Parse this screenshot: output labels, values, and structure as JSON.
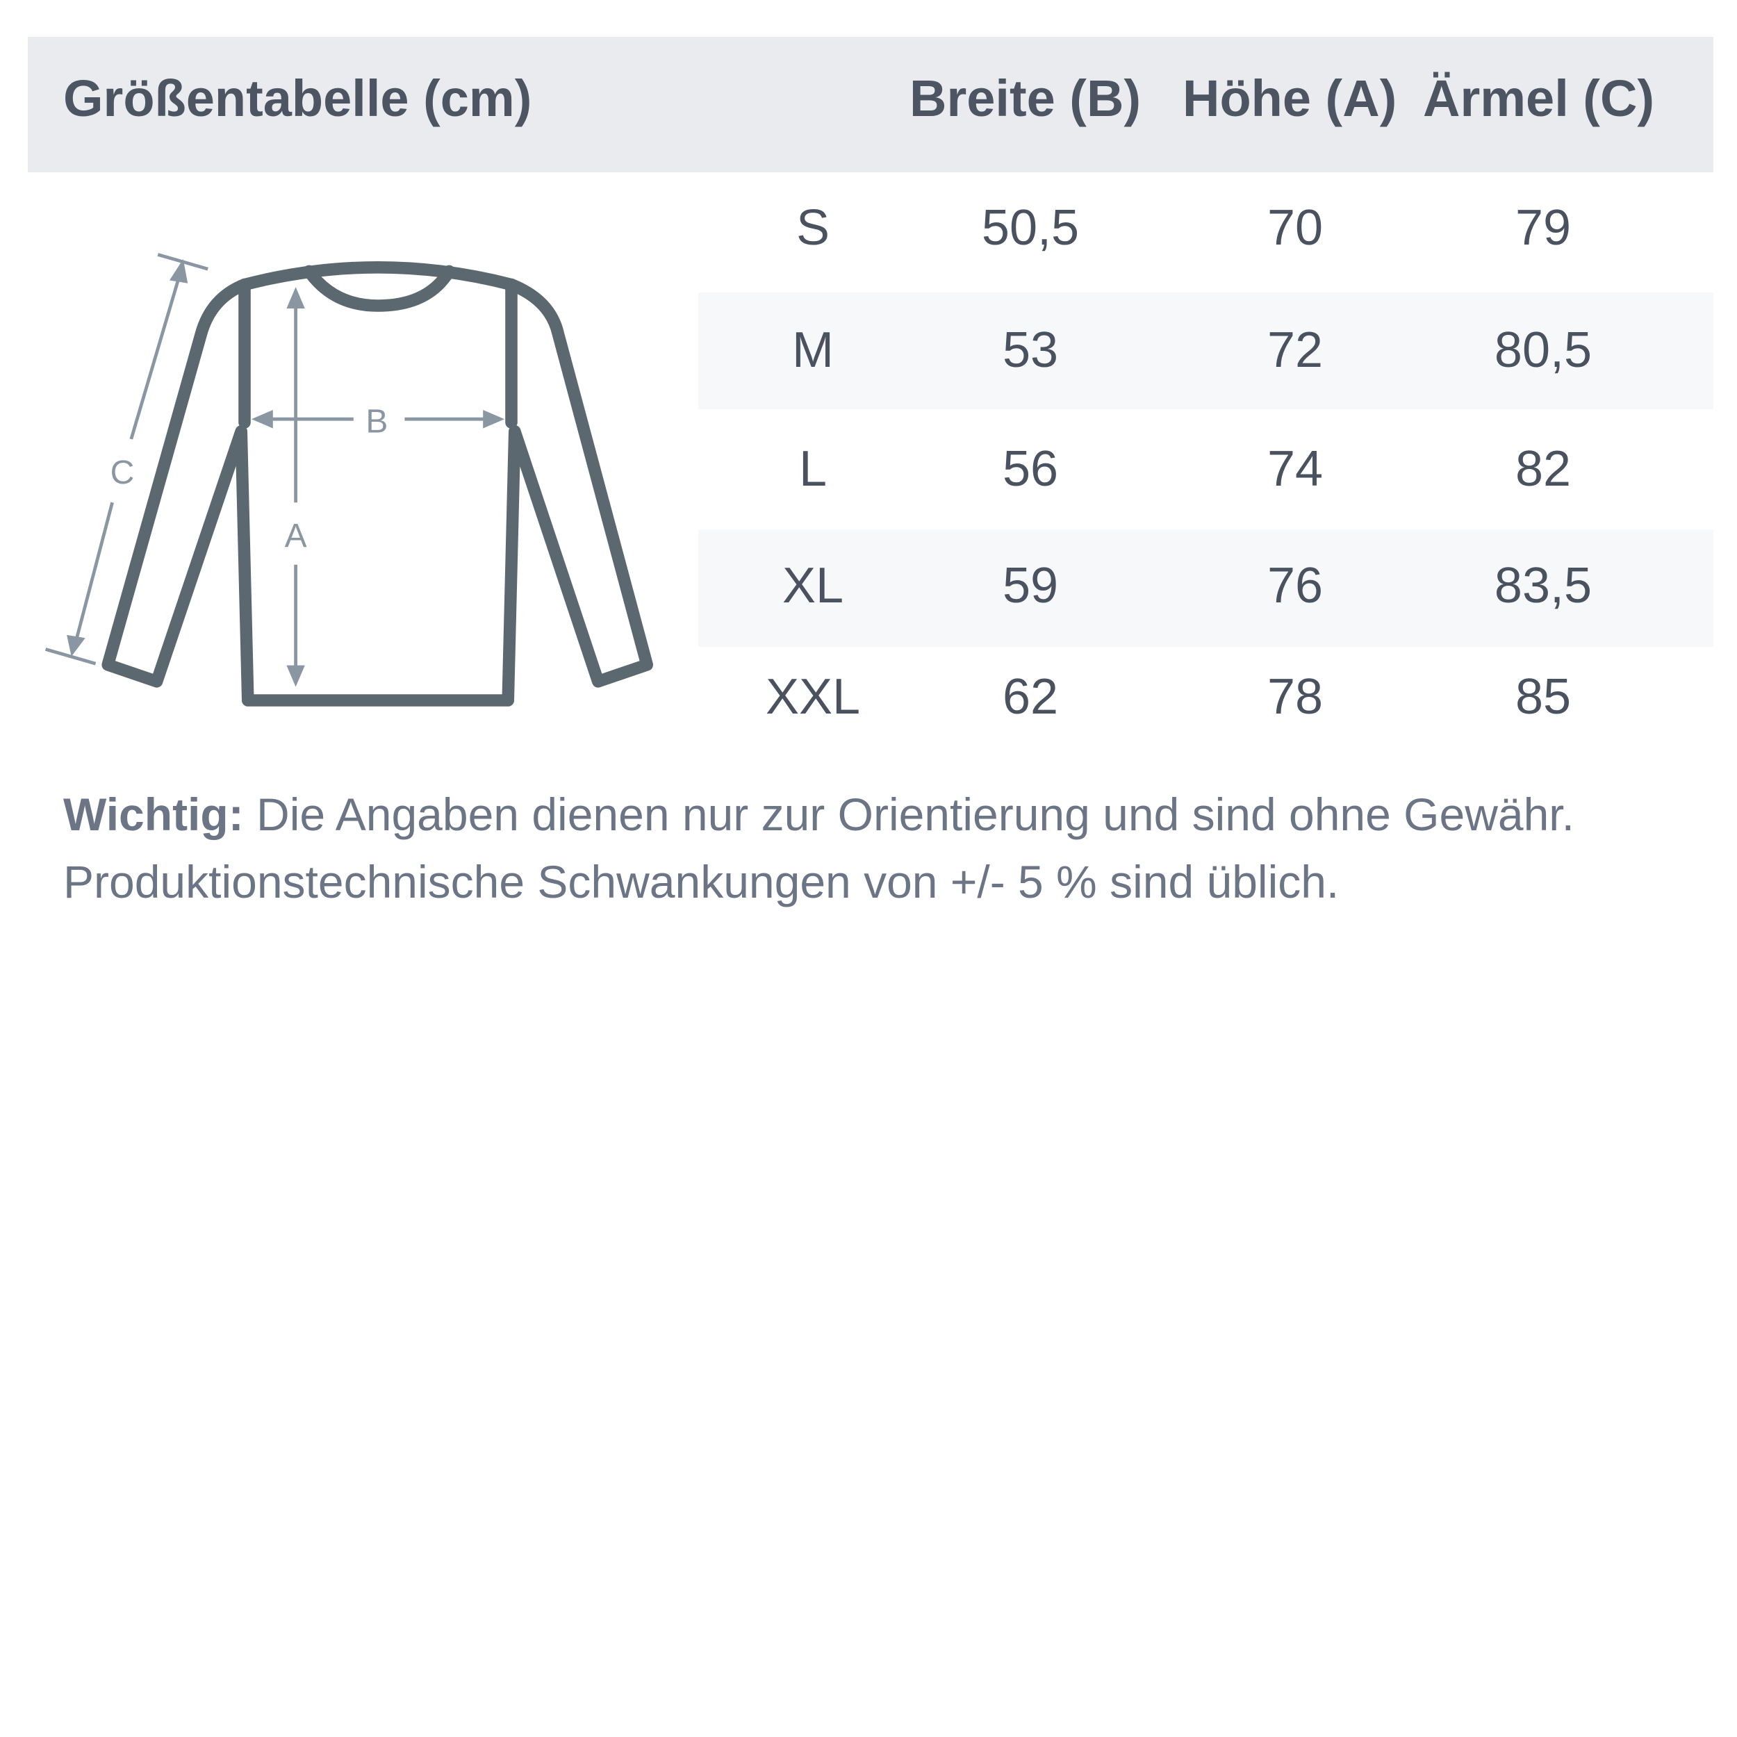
{
  "header": {
    "title": "Größentabelle (cm)",
    "columns": [
      "Breite (B)",
      "Höhe (A)",
      "Ärmel (C)"
    ]
  },
  "diagram": {
    "labels": {
      "width": "B",
      "height": "A",
      "sleeve": "C"
    }
  },
  "rows": [
    {
      "size": "S",
      "breite": "50,5",
      "hoehe": "70",
      "aermel": "79"
    },
    {
      "size": "M",
      "breite": "53",
      "hoehe": "72",
      "aermel": "80,5"
    },
    {
      "size": "L",
      "breite": "56",
      "hoehe": "74",
      "aermel": "82"
    },
    {
      "size": "XL",
      "breite": "59",
      "hoehe": "76",
      "aermel": "83,5"
    },
    {
      "size": "XXL",
      "breite": "62",
      "hoehe": "78",
      "aermel": "85"
    }
  ],
  "note": {
    "label": "Wichtig:",
    "line1": " Die Angaben dienen nur zur Orientierung und sind ohne Gewähr.",
    "line2": "Produktionstechnische Schwankungen von +/- 5 % sind üblich."
  },
  "colors": {
    "header_bg": "#eaebee",
    "stripe": "#f7f8f9",
    "outline": "#5c6870",
    "arrows": "#8a97a3",
    "text": "#4a5260",
    "note": "#6b7585"
  }
}
